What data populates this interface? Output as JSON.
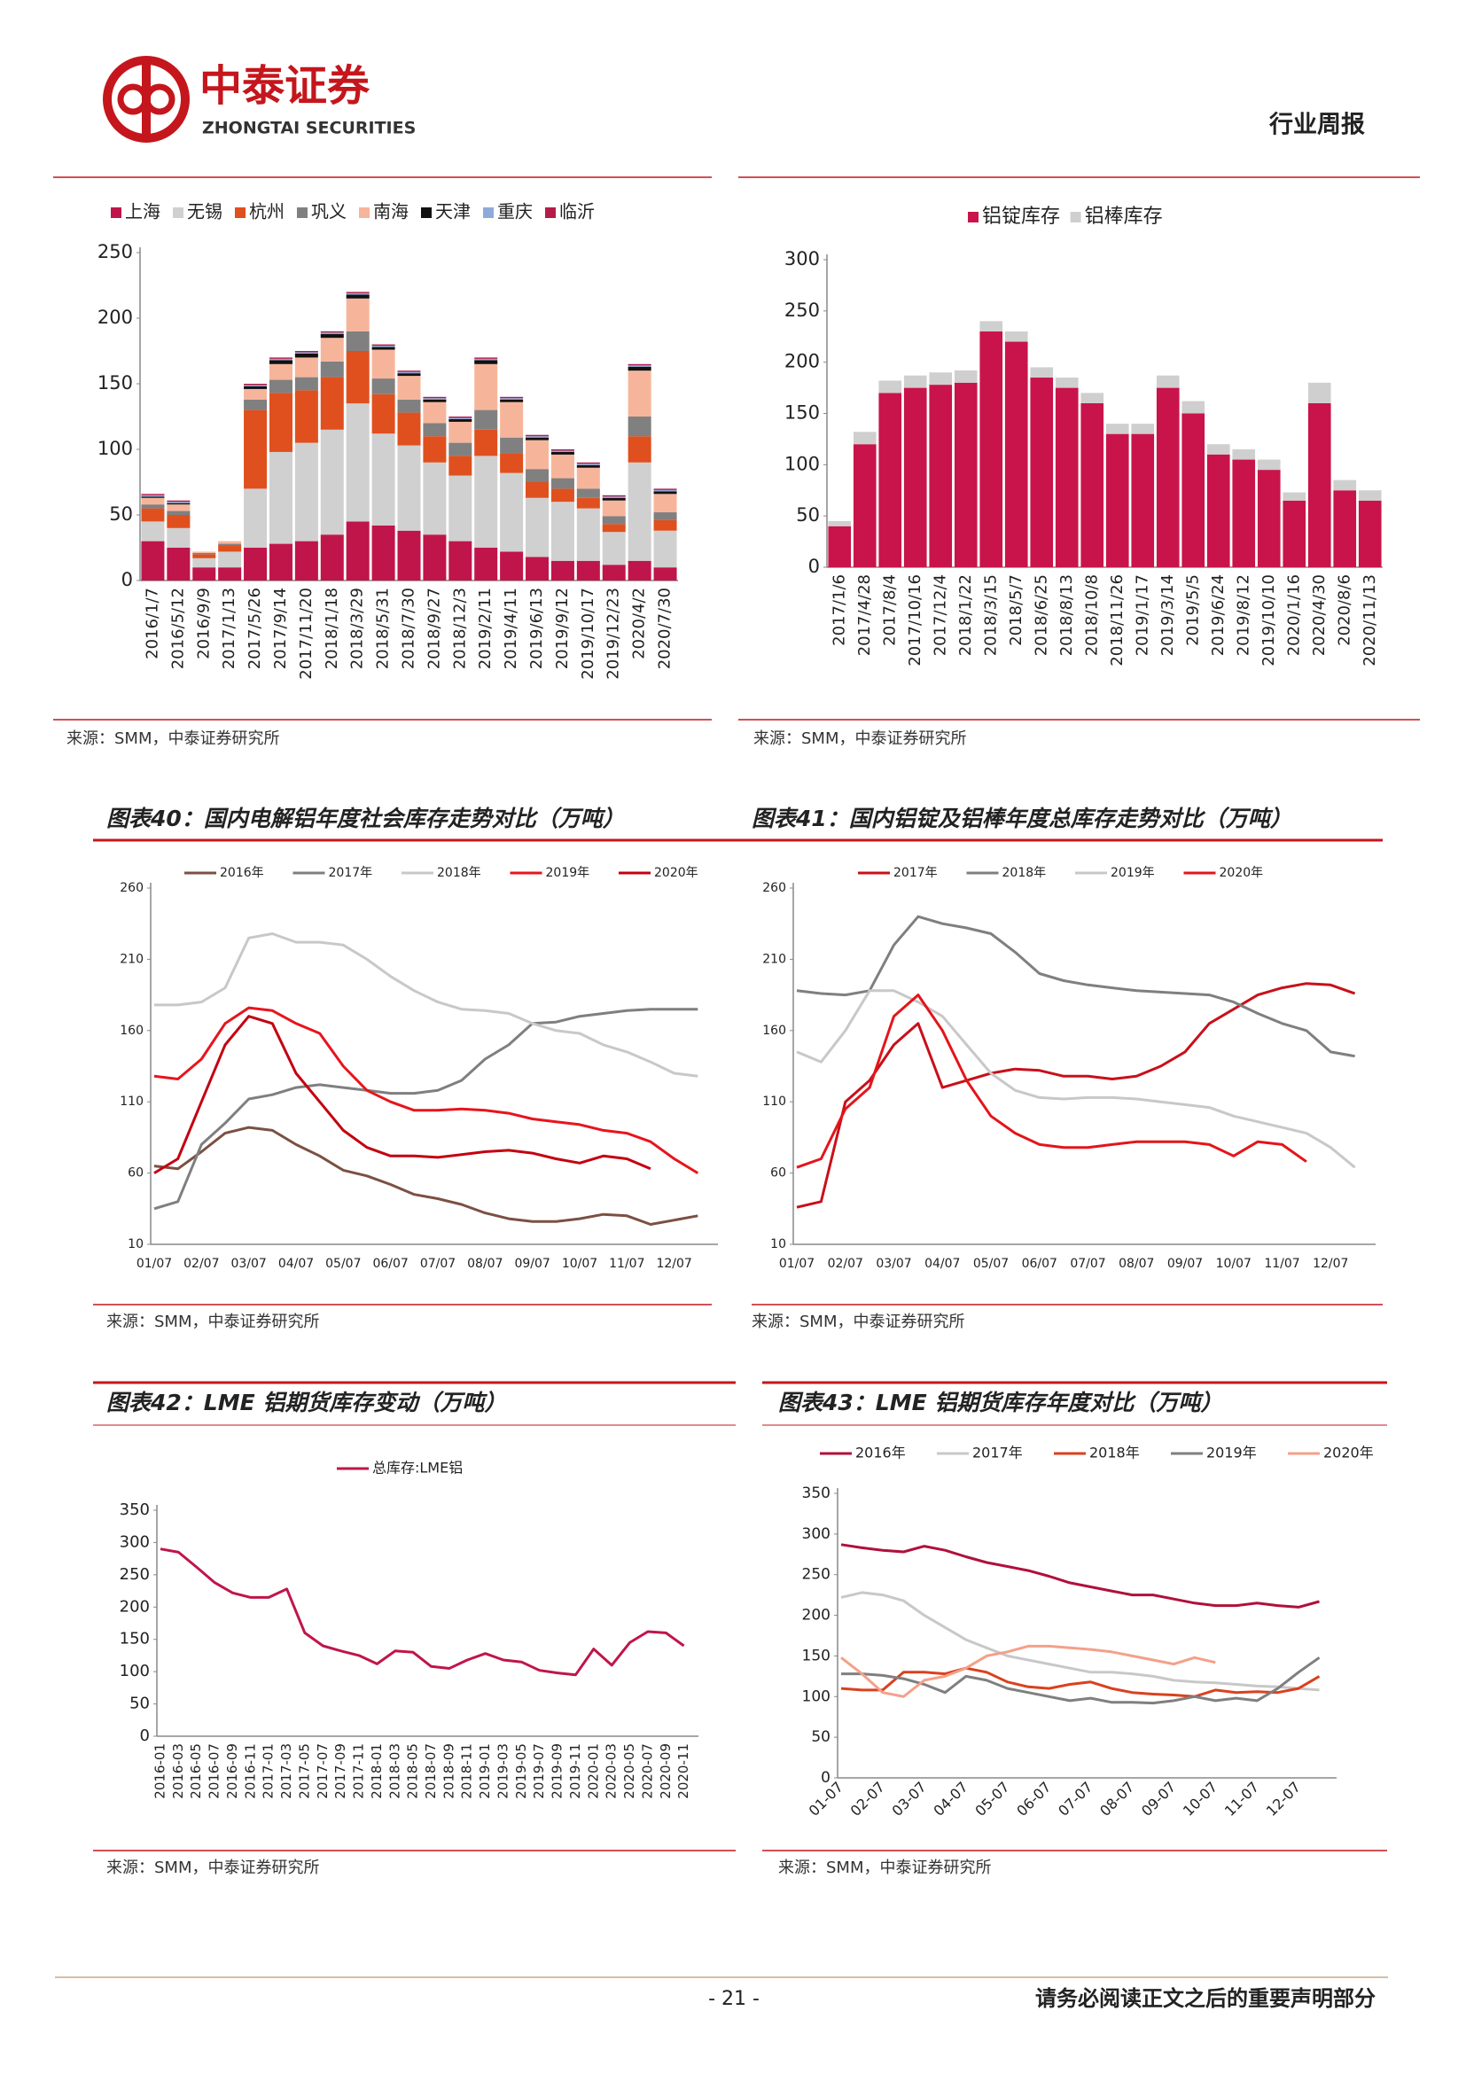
{
  "header": {
    "company": "中泰证券",
    "company_en": "ZHONGTAI SECURITIES",
    "report_type": "行业周报"
  },
  "chart_data": [
    {
      "type": "stacked_bar",
      "source": "来源：SMM，中泰证券研究所",
      "legend": "top",
      "categories": [
        "2016/1/7",
        "2016/5/12",
        "2016/9/9",
        "2017/1/13",
        "2017/5/26",
        "2017/9/14",
        "2017/11/20",
        "2018/1/18",
        "2018/3/29",
        "2018/5/31",
        "2018/7/30",
        "2018/9/27",
        "2018/12/3",
        "2019/2/11",
        "2019/4/11",
        "2019/6/13",
        "2019/9/12",
        "2019/10/17",
        "2019/12/23",
        "2020/4/2",
        "2020/7/30"
      ],
      "ylim": [
        0,
        250
      ],
      "yticks": [
        0,
        50,
        100,
        150,
        200,
        250
      ],
      "series": [
        {
          "name": "上海",
          "color": "#c0154a",
          "values": [
            30,
            25,
            10,
            10,
            25,
            28,
            30,
            35,
            45,
            42,
            38,
            35,
            30,
            25,
            22,
            18,
            15,
            15,
            12,
            15,
            10
          ]
        },
        {
          "name": "无锡",
          "color": "#d0d0d0",
          "values": [
            15,
            15,
            7,
            12,
            45,
            70,
            75,
            80,
            90,
            70,
            65,
            55,
            50,
            70,
            60,
            45,
            45,
            40,
            25,
            75,
            28
          ]
        },
        {
          "name": "杭州",
          "color": "#e0501e",
          "values": [
            10,
            10,
            3,
            5,
            60,
            45,
            40,
            40,
            40,
            30,
            25,
            20,
            15,
            20,
            15,
            12,
            10,
            8,
            6,
            20,
            8
          ]
        },
        {
          "name": "巩义",
          "color": "#808080",
          "values": [
            3,
            3,
            1,
            1,
            8,
            10,
            10,
            12,
            15,
            12,
            10,
            10,
            10,
            15,
            12,
            10,
            8,
            7,
            6,
            15,
            6
          ]
        },
        {
          "name": "南海",
          "color": "#f6b59b",
          "values": [
            5,
            5,
            1,
            2,
            8,
            12,
            15,
            18,
            25,
            22,
            18,
            16,
            16,
            35,
            27,
            22,
            18,
            16,
            12,
            35,
            14
          ]
        },
        {
          "name": "天津",
          "color": "#111111",
          "values": [
            1,
            1,
            0,
            0,
            2,
            3,
            3,
            3,
            3,
            2,
            2,
            2,
            2,
            3,
            2,
            2,
            2,
            2,
            2,
            3,
            2
          ]
        },
        {
          "name": "重庆",
          "color": "#8eaadb",
          "values": [
            1,
            1,
            0,
            0,
            1,
            1,
            1,
            1,
            1,
            1,
            1,
            1,
            1,
            1,
            1,
            1,
            1,
            1,
            1,
            1,
            1
          ]
        },
        {
          "name": "临沂",
          "color": "#b51c4a",
          "values": [
            1,
            1,
            0,
            0,
            1,
            1,
            1,
            1,
            1,
            1,
            1,
            1,
            1,
            1,
            1,
            1,
            1,
            1,
            1,
            1,
            1
          ]
        }
      ]
    },
    {
      "type": "stacked_bar",
      "source": "来源：SMM，中泰证券研究所",
      "legend": "top",
      "categories": [
        "2017/1/6",
        "2017/4/28",
        "2017/8/4",
        "2017/10/16",
        "2017/12/4",
        "2018/1/22",
        "2018/3/15",
        "2018/5/7",
        "2018/6/25",
        "2018/8/13",
        "2018/10/8",
        "2018/11/26",
        "2019/1/17",
        "2019/3/14",
        "2019/5/5",
        "2019/6/24",
        "2019/8/12",
        "2019/10/10",
        "2020/1/16",
        "2020/4/30",
        "2020/8/6",
        "2020/11/13"
      ],
      "ylim": [
        0,
        300
      ],
      "yticks": [
        0,
        50,
        100,
        150,
        200,
        250,
        300
      ],
      "series": [
        {
          "name": "铝锭库存",
          "color": "#c8144a",
          "values": [
            40,
            120,
            170,
            175,
            178,
            180,
            230,
            220,
            185,
            175,
            160,
            130,
            130,
            175,
            150,
            110,
            105,
            95,
            65,
            160,
            75,
            65
          ]
        },
        {
          "name": "铝棒库存",
          "color": "#cfcfcf",
          "values": [
            5,
            12,
            12,
            12,
            12,
            12,
            10,
            10,
            10,
            10,
            10,
            10,
            10,
            12,
            12,
            10,
            10,
            10,
            8,
            20,
            10,
            10
          ]
        }
      ]
    },
    {
      "type": "line",
      "title": "图表40：国内电解铝年度社会库存走势对比（万吨）",
      "source": "来源：SMM，中泰证券研究所",
      "legend": "top",
      "categories": [
        "01/07",
        null,
        "02/07",
        null,
        "03/07",
        null,
        "04/07",
        null,
        "05/07",
        null,
        "06/07",
        null,
        "07/07",
        null,
        "08/07",
        null,
        "09/07",
        null,
        "10/07",
        null,
        "11/07",
        null,
        "12/07",
        null
      ],
      "ylim": [
        10,
        260
      ],
      "yticks": [
        10,
        60,
        110,
        160,
        210,
        260
      ],
      "series": [
        {
          "name": "2016年",
          "color": "#7b5042",
          "values": [
            65,
            63,
            75,
            88,
            92,
            90,
            80,
            72,
            62,
            58,
            52,
            45,
            42,
            38,
            32,
            28,
            26,
            26,
            28,
            31,
            30,
            24,
            27,
            30
          ]
        },
        {
          "name": "2017年",
          "color": "#7f7f7f",
          "values": [
            35,
            40,
            80,
            95,
            112,
            115,
            120,
            122,
            120,
            118,
            116,
            116,
            118,
            125,
            140,
            150,
            165,
            166,
            170,
            172,
            174,
            175,
            175,
            175
          ]
        },
        {
          "name": "2018年",
          "color": "#c8c8c8",
          "values": [
            178,
            178,
            180,
            190,
            225,
            228,
            222,
            222,
            220,
            210,
            198,
            188,
            180,
            175,
            174,
            172,
            165,
            160,
            158,
            150,
            145,
            138,
            130,
            128
          ]
        },
        {
          "name": "2019年",
          "color": "#e8141c",
          "values": [
            128,
            126,
            140,
            165,
            176,
            174,
            165,
            158,
            135,
            118,
            110,
            104,
            104,
            105,
            104,
            102,
            98,
            96,
            94,
            90,
            88,
            82,
            70,
            60
          ]
        },
        {
          "name": "2020年",
          "color": "#c4000f",
          "values": [
            60,
            70,
            110,
            150,
            170,
            165,
            130,
            110,
            90,
            78,
            72,
            72,
            71,
            73,
            75,
            76,
            74,
            70,
            67,
            72,
            70,
            63,
            null,
            null
          ]
        }
      ]
    },
    {
      "type": "line",
      "title": "图表41：国内铝锭及铝棒年度总库存走势对比（万吨）",
      "source": "来源：SMM，中泰证券研究所",
      "legend": "top",
      "categories": [
        "01/07",
        null,
        "02/07",
        null,
        "03/07",
        null,
        "04/07",
        null,
        "05/07",
        null,
        "06/07",
        null,
        "07/07",
        null,
        "08/07",
        null,
        "09/07",
        null,
        "10/07",
        null,
        "11/07",
        null,
        "12/07",
        null
      ],
      "ylim": [
        10,
        260
      ],
      "yticks": [
        10,
        60,
        110,
        160,
        210,
        260
      ],
      "series": [
        {
          "name": "2017年",
          "color": "#c8101a",
          "values": [
            36,
            40,
            110,
            125,
            150,
            165,
            120,
            125,
            130,
            133,
            132,
            128,
            128,
            126,
            128,
            135,
            145,
            165,
            175,
            185,
            190,
            193,
            192,
            186
          ]
        },
        {
          "name": "2018年",
          "color": "#7f7f7f",
          "values": [
            188,
            186,
            185,
            188,
            220,
            240,
            235,
            232,
            228,
            215,
            200,
            195,
            192,
            190,
            188,
            187,
            186,
            185,
            180,
            172,
            165,
            160,
            145,
            142
          ]
        },
        {
          "name": "2019年",
          "color": "#c8c8c8",
          "values": [
            145,
            138,
            160,
            188,
            188,
            180,
            170,
            150,
            130,
            118,
            113,
            112,
            113,
            113,
            112,
            110,
            108,
            106,
            100,
            96,
            92,
            88,
            78,
            64
          ]
        },
        {
          "name": "2020年",
          "color": "#e3151a",
          "values": [
            64,
            70,
            105,
            120,
            170,
            185,
            160,
            125,
            100,
            88,
            80,
            78,
            78,
            80,
            82,
            82,
            82,
            80,
            72,
            82,
            80,
            68,
            null,
            null
          ]
        }
      ]
    },
    {
      "type": "line",
      "title": "图表42：LME 铝期货库存变动（万吨）",
      "source": "来源：SMM，中泰证券研究所",
      "legend": "top",
      "categories": [
        "2016-01",
        "2016-03",
        "2016-05",
        "2016-07",
        "2016-09",
        "2016-11",
        "2017-01",
        "2017-03",
        "2017-05",
        "2017-07",
        "2017-09",
        "2017-11",
        "2018-01",
        "2018-03",
        "2018-05",
        "2018-07",
        "2018-09",
        "2018-11",
        "2019-01",
        "2019-03",
        "2019-05",
        "2019-07",
        "2019-09",
        "2019-11",
        "2020-01",
        "2020-03",
        "2020-05",
        "2020-07",
        "2020-09",
        "2020-11"
      ],
      "ylim": [
        0,
        350
      ],
      "yticks": [
        0,
        50,
        100,
        150,
        200,
        250,
        300,
        350
      ],
      "series": [
        {
          "name": "总库存:LME铝",
          "color": "#c0154a",
          "values": [
            290,
            285,
            262,
            238,
            222,
            215,
            215,
            228,
            160,
            140,
            132,
            125,
            112,
            132,
            130,
            108,
            105,
            118,
            128,
            118,
            115,
            102,
            98,
            95,
            135,
            110,
            145,
            162,
            160,
            140
          ]
        }
      ]
    },
    {
      "type": "line",
      "title": "图表43：LME 铝期货库存年度对比（万吨）",
      "source": "来源：SMM，中泰证券研究所",
      "legend": "top",
      "categories": [
        "01-07",
        null,
        "02-07",
        null,
        "03-07",
        null,
        "04-07",
        null,
        "05-07",
        null,
        "06-07",
        null,
        "07-07",
        null,
        "08-07",
        null,
        "09-07",
        null,
        "10-07",
        null,
        "11-07",
        null,
        "12-07",
        null
      ],
      "ylim": [
        0,
        350
      ],
      "yticks": [
        0,
        50,
        100,
        150,
        200,
        250,
        300,
        350
      ],
      "series": [
        {
          "name": "2016年",
          "color": "#b0103a",
          "values": [
            287,
            283,
            280,
            278,
            285,
            280,
            272,
            265,
            260,
            255,
            248,
            240,
            235,
            230,
            225,
            225,
            220,
            215,
            212,
            212,
            215,
            212,
            210,
            217
          ]
        },
        {
          "name": "2017年",
          "color": "#c8c8c8",
          "values": [
            222,
            228,
            225,
            218,
            200,
            185,
            170,
            160,
            150,
            145,
            140,
            135,
            130,
            130,
            128,
            125,
            120,
            118,
            117,
            115,
            113,
            112,
            110,
            108
          ]
        },
        {
          "name": "2018年",
          "color": "#d9411e",
          "values": [
            110,
            108,
            108,
            130,
            130,
            128,
            135,
            130,
            118,
            112,
            110,
            115,
            118,
            110,
            105,
            103,
            102,
            100,
            108,
            105,
            106,
            105,
            110,
            125
          ]
        },
        {
          "name": "2019年",
          "color": "#7f7f7f",
          "values": [
            128,
            128,
            126,
            122,
            115,
            105,
            125,
            120,
            110,
            105,
            100,
            95,
            98,
            93,
            93,
            92,
            95,
            100,
            95,
            98,
            95,
            110,
            130,
            148
          ]
        },
        {
          "name": "2020年",
          "color": "#f4a08a",
          "values": [
            148,
            128,
            105,
            100,
            120,
            125,
            135,
            150,
            155,
            162,
            162,
            160,
            158,
            155,
            150,
            145,
            140,
            148,
            142,
            null,
            null,
            null,
            null,
            null
          ]
        }
      ]
    }
  ],
  "footer": {
    "page": "- 21 -",
    "disclaimer": "请务必阅读正文之后的重要声明部分"
  }
}
